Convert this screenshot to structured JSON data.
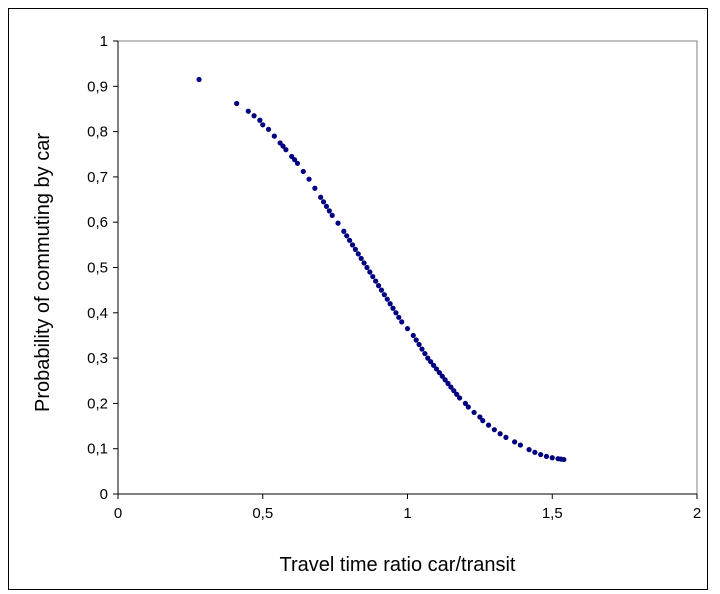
{
  "chart_data": {
    "type": "scatter",
    "xlabel": "Travel time ratio car/transit",
    "ylabel": "Probability of commuting by car",
    "xlim": [
      0,
      2
    ],
    "ylim": [
      0,
      1
    ],
    "xticks": [
      "0",
      "0,5",
      "1",
      "1,5",
      "2"
    ],
    "xtick_values": [
      0,
      0.5,
      1,
      1.5,
      2
    ],
    "yticks": [
      "0",
      "0,1",
      "0,2",
      "0,3",
      "0,4",
      "0,5",
      "0,6",
      "0,7",
      "0,8",
      "0,9",
      "1"
    ],
    "ytick_values": [
      0,
      0.1,
      0.2,
      0.3,
      0.4,
      0.5,
      0.6,
      0.7,
      0.8,
      0.9,
      1
    ],
    "grid": false,
    "legend": "none",
    "marker_color": "#000080",
    "x": [
      0.28,
      0.41,
      0.45,
      0.47,
      0.49,
      0.5,
      0.52,
      0.54,
      0.56,
      0.57,
      0.58,
      0.6,
      0.61,
      0.62,
      0.64,
      0.66,
      0.68,
      0.7,
      0.71,
      0.72,
      0.73,
      0.74,
      0.76,
      0.78,
      0.79,
      0.8,
      0.81,
      0.82,
      0.83,
      0.84,
      0.85,
      0.86,
      0.87,
      0.88,
      0.89,
      0.9,
      0.91,
      0.92,
      0.93,
      0.94,
      0.95,
      0.96,
      0.97,
      0.98,
      1.0,
      1.02,
      1.03,
      1.04,
      1.05,
      1.06,
      1.07,
      1.08,
      1.09,
      1.1,
      1.11,
      1.12,
      1.13,
      1.14,
      1.15,
      1.16,
      1.17,
      1.18,
      1.2,
      1.21,
      1.23,
      1.25,
      1.26,
      1.28,
      1.3,
      1.32,
      1.34,
      1.37,
      1.39,
      1.42,
      1.44,
      1.46,
      1.48,
      1.5,
      1.52,
      1.53,
      1.54
    ],
    "y": [
      0.915,
      0.862,
      0.845,
      0.835,
      0.825,
      0.815,
      0.805,
      0.79,
      0.775,
      0.768,
      0.76,
      0.745,
      0.738,
      0.73,
      0.712,
      0.695,
      0.675,
      0.655,
      0.645,
      0.635,
      0.625,
      0.615,
      0.598,
      0.58,
      0.57,
      0.56,
      0.55,
      0.54,
      0.53,
      0.52,
      0.51,
      0.5,
      0.49,
      0.48,
      0.47,
      0.46,
      0.45,
      0.44,
      0.43,
      0.42,
      0.41,
      0.4,
      0.39,
      0.38,
      0.365,
      0.35,
      0.34,
      0.33,
      0.32,
      0.31,
      0.3,
      0.292,
      0.284,
      0.276,
      0.268,
      0.26,
      0.252,
      0.244,
      0.236,
      0.228,
      0.22,
      0.212,
      0.2,
      0.192,
      0.18,
      0.17,
      0.162,
      0.152,
      0.142,
      0.133,
      0.125,
      0.115,
      0.108,
      0.098,
      0.092,
      0.087,
      0.083,
      0.08,
      0.078,
      0.077,
      0.076
    ]
  }
}
